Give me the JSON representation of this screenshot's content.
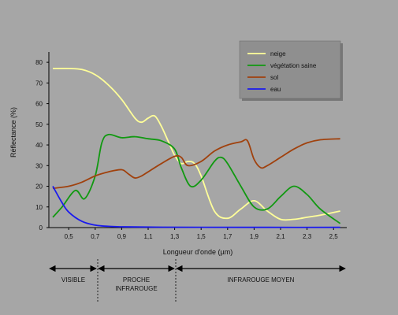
{
  "chart_data": {
    "type": "line",
    "xlabel": "Longueur d'onde (µm)",
    "ylabel": "Réflectance (%)",
    "xlim": [
      0.35,
      2.6
    ],
    "ylim": [
      0,
      85
    ],
    "xticks": [
      "0,5",
      "0,7",
      "0,9",
      "1,1",
      "1,3",
      "1,5",
      "1,7",
      "1,9",
      "2,1",
      "2,3",
      "2,5"
    ],
    "xtick_values": [
      0.5,
      0.7,
      0.9,
      1.1,
      1.3,
      1.5,
      1.7,
      1.9,
      2.1,
      2.3,
      2.5
    ],
    "yticks": [
      "0",
      "10",
      "20",
      "30",
      "40",
      "50",
      "60",
      "70",
      "80"
    ],
    "ytick_values": [
      0,
      10,
      20,
      30,
      40,
      50,
      60,
      70,
      80
    ],
    "grid": false,
    "legend_position": "top-right",
    "series": [
      {
        "name": "neige",
        "color": "#ffff99",
        "x": [
          0.38,
          0.5,
          0.6,
          0.7,
          0.8,
          0.9,
          1.0,
          1.05,
          1.1,
          1.15,
          1.2,
          1.25,
          1.3,
          1.35,
          1.4,
          1.45,
          1.5,
          1.6,
          1.7,
          1.8,
          1.9,
          2.0,
          2.1,
          2.2,
          2.3,
          2.4,
          2.55
        ],
        "y": [
          77,
          77,
          76.5,
          74,
          69,
          62,
          53,
          51,
          53,
          54,
          49,
          42,
          35,
          31,
          32,
          31,
          25,
          8,
          4.5,
          9,
          13,
          8,
          4,
          4,
          5,
          6,
          8
        ]
      },
      {
        "name": "végétation saine",
        "color": "#119911",
        "x": [
          0.38,
          0.45,
          0.55,
          0.62,
          0.7,
          0.75,
          0.8,
          0.9,
          1.0,
          1.1,
          1.2,
          1.3,
          1.35,
          1.42,
          1.5,
          1.6,
          1.65,
          1.7,
          1.8,
          1.9,
          2.0,
          2.1,
          2.2,
          2.3,
          2.4,
          2.55
        ],
        "y": [
          5,
          10,
          18,
          14,
          25,
          41,
          45,
          43.5,
          44,
          43,
          42,
          38,
          29,
          20,
          23,
          32,
          34,
          31,
          20,
          10,
          9,
          15,
          20,
          16,
          9,
          2
        ]
      },
      {
        "name": "sol",
        "color": "#a0410d",
        "x": [
          0.38,
          0.5,
          0.6,
          0.7,
          0.8,
          0.9,
          0.95,
          1.0,
          1.05,
          1.1,
          1.2,
          1.3,
          1.35,
          1.4,
          1.5,
          1.6,
          1.7,
          1.8,
          1.85,
          1.9,
          1.95,
          2.0,
          2.1,
          2.2,
          2.3,
          2.4,
          2.55
        ],
        "y": [
          19,
          20,
          22,
          25,
          27,
          28,
          26,
          24,
          25,
          27,
          31,
          34.5,
          34,
          30,
          32,
          37,
          40,
          41.5,
          42,
          33,
          29,
          30,
          34,
          38,
          41,
          42.5,
          43
        ]
      },
      {
        "name": "eau",
        "color": "#1a1aee",
        "x": [
          0.38,
          0.45,
          0.5,
          0.6,
          0.7,
          0.8,
          0.9,
          1.0,
          1.2,
          1.5,
          2.0,
          2.55
        ],
        "y": [
          20,
          12,
          7.5,
          3,
          1.2,
          0.6,
          0.4,
          0.3,
          0.2,
          0.15,
          0.1,
          0.1
        ]
      }
    ]
  },
  "regions": {
    "visible": "VISIBLE",
    "nir_line1": "PROCHE",
    "nir_line2": "INFRAROUGE",
    "mir": "INFRAROUGE MOYEN"
  }
}
